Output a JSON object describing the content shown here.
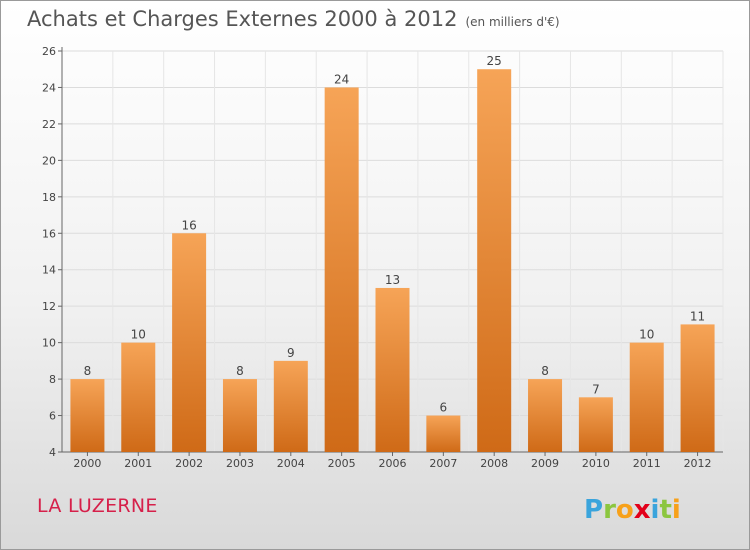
{
  "chart_data": {
    "type": "bar",
    "title": "Achats et Charges Externes 2000 à 2012",
    "unit_label": "(en milliers d'€)",
    "categories": [
      "2000",
      "2001",
      "2002",
      "2003",
      "2004",
      "2005",
      "2006",
      "2007",
      "2008",
      "2009",
      "2010",
      "2011",
      "2012"
    ],
    "values": [
      8,
      10,
      16,
      8,
      9,
      24,
      13,
      6,
      25,
      8,
      7,
      10,
      11
    ],
    "ylim": [
      4,
      26
    ],
    "yticks": [
      4,
      6,
      8,
      10,
      12,
      14,
      16,
      18,
      20,
      22,
      24,
      26
    ],
    "grid": true,
    "bar_color": "#e8883a",
    "xlabel": "",
    "ylabel": ""
  },
  "footer": {
    "place_name": "LA LUZERNE",
    "logo_text": "Proxiti"
  }
}
